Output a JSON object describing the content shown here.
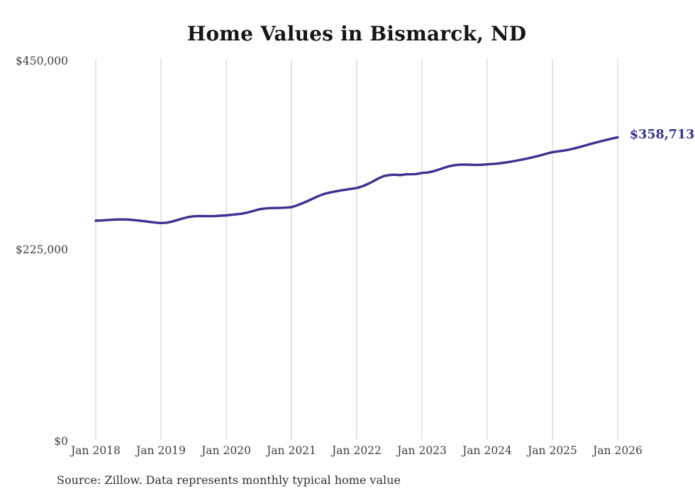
{
  "page": {
    "title": "Home Values in Bismarck, ND",
    "source_note": "Source: Zillow. Data represents monthly typical home value"
  },
  "colors": {
    "line": "#3b3291",
    "gridline": "#c9c9c9",
    "title_text": "#161616",
    "axis_text": "#3f3f3f",
    "annotation_text": "#34308e",
    "source_text": "#2e2e2e",
    "background": "#ffffff"
  },
  "chart_data": {
    "type": "line",
    "title": "Home Values in Bismarck, ND",
    "series_name": "Monthly typical home value",
    "frequency": "monthly",
    "start_month": "Jan 2018",
    "end_month": "Jan 2026",
    "x_tick_labels": [
      "Jan 2018",
      "Jan 2019",
      "Jan 2020",
      "Jan 2021",
      "Jan 2022",
      "Jan 2023",
      "Jan 2024",
      "Jan 2025",
      "Jan 2026"
    ],
    "y_tick_labels": [
      "$0",
      "$225,000",
      "$450,000"
    ],
    "ylim": [
      0,
      450000
    ],
    "grid": "vertical-only",
    "legend": "none",
    "end_label": "$358,713",
    "end_value": 358713,
    "values": [
      259900,
      260200,
      260600,
      261000,
      261300,
      261400,
      261200,
      260700,
      260000,
      259200,
      258400,
      257600,
      257100,
      257500,
      258800,
      260600,
      262500,
      264200,
      265100,
      265400,
      265300,
      265200,
      265500,
      265900,
      266200,
      266900,
      267600,
      268400,
      269700,
      271500,
      273300,
      274300,
      274900,
      274900,
      275100,
      275400,
      275900,
      278000,
      280500,
      283300,
      286200,
      289200,
      291600,
      293200,
      294500,
      295700,
      296700,
      297700,
      298600,
      300500,
      303200,
      306500,
      310000,
      312800,
      314000,
      314400,
      313900,
      314800,
      314900,
      315200,
      316500,
      316900,
      318300,
      320300,
      322500,
      324400,
      325700,
      326300,
      326400,
      326200,
      326000,
      326200,
      326700,
      327100,
      327700,
      328500,
      329500,
      330600,
      331800,
      333100,
      334500,
      336000,
      337700,
      339500,
      341200,
      342000,
      342900,
      344000,
      345500,
      347200,
      349000,
      350800,
      352500,
      354200,
      355800,
      357300,
      358713
    ]
  }
}
